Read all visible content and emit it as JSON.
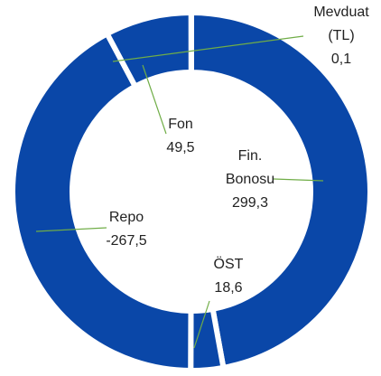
{
  "chart_data": {
    "type": "donut",
    "categories": [
      "Fin. Bonosu",
      "ÖST",
      "Repo",
      "Fon",
      "Mevduat (TL)"
    ],
    "values": [
      299.3,
      18.6,
      -267.5,
      49.5,
      0.1
    ],
    "value_labels": [
      "299,3",
      "18,6",
      "-267,5",
      "49,5",
      "0,1"
    ],
    "color": "#0a47a8"
  }
}
